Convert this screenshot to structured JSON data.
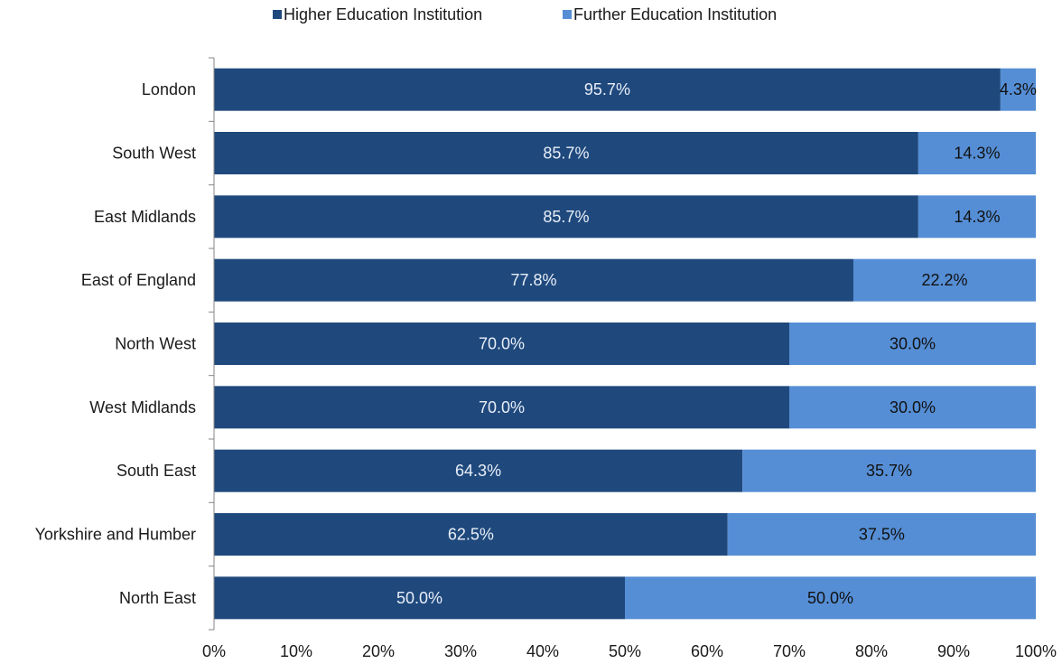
{
  "chart_data": {
    "type": "bar",
    "orientation": "horizontal",
    "stacked": "percent",
    "title": "",
    "xlabel": "",
    "ylabel": "",
    "categories": [
      "London",
      "South West",
      "East Midlands",
      "East of England",
      "North West",
      "West Midlands",
      "South East",
      "Yorkshire and Humber",
      "North East"
    ],
    "series": [
      {
        "name": "Higher Education Institution",
        "color": "#1F497D",
        "label_color": "#e8eef7",
        "values": [
          95.7,
          85.7,
          85.7,
          77.8,
          70.0,
          70.0,
          64.3,
          62.5,
          50.0
        ],
        "labels": [
          "95.7%",
          "85.7%",
          "85.7%",
          "77.8%",
          "70.0%",
          "70.0%",
          "64.3%",
          "62.5%",
          "50.0%"
        ]
      },
      {
        "name": "Further Education Institution",
        "color": "#558ED5",
        "label_color": "#111111",
        "values": [
          4.3,
          14.3,
          14.3,
          22.2,
          30.0,
          30.0,
          35.7,
          37.5,
          50.0
        ],
        "labels": [
          "4.3%",
          "14.3%",
          "14.3%",
          "22.2%",
          "30.0%",
          "30.0%",
          "35.7%",
          "37.5%",
          "50.0%"
        ]
      }
    ],
    "xlim": [
      0,
      100
    ],
    "x_ticks": [
      0,
      10,
      20,
      30,
      40,
      50,
      60,
      70,
      80,
      90,
      100
    ],
    "x_tick_labels": [
      "0%",
      "10%",
      "20%",
      "30%",
      "40%",
      "50%",
      "60%",
      "70%",
      "80%",
      "90%",
      "100%"
    ],
    "grid": false,
    "legend_position": "top"
  }
}
